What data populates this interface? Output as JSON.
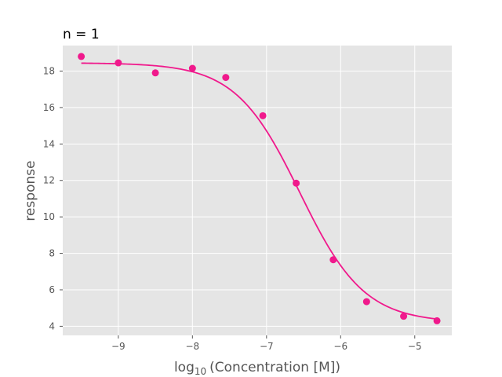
{
  "chart_data": {
    "type": "scatter",
    "title": "n = 1",
    "xlabel_prefix": "log",
    "xlabel_sub": "10",
    "xlabel_suffix": "(Concentration [M])",
    "ylabel": "response",
    "xlim": [
      -9.75,
      -4.5
    ],
    "ylim": [
      3.5,
      19.4
    ],
    "x_ticks": [
      -9,
      -8,
      -7,
      -6,
      -5
    ],
    "x_tick_labels": [
      "−9",
      "−8",
      "−7",
      "−6",
      "−5"
    ],
    "y_ticks": [
      4,
      6,
      8,
      10,
      12,
      14,
      16,
      18
    ],
    "y_tick_labels": [
      "4",
      "6",
      "8",
      "10",
      "12",
      "14",
      "16",
      "18"
    ],
    "grid": true,
    "series": [
      {
        "x": [
          -9.5,
          -9.0,
          -8.5,
          -8.0,
          -7.55,
          -7.05,
          -6.6,
          -6.1,
          -5.65,
          -5.15,
          -4.7
        ],
        "values": [
          18.8,
          18.45,
          17.9,
          18.15,
          17.65,
          15.55,
          11.85,
          7.65,
          5.35,
          4.55,
          4.3
        ]
      }
    ],
    "fit": {
      "type": "4PL",
      "top": 18.45,
      "bottom": 4.2,
      "log_ec50": -6.55,
      "hill": 1.0,
      "x_range": [
        -9.5,
        -4.7
      ]
    },
    "colors": {
      "series": "#f0198c",
      "plot_bg": "#e5e5e5",
      "grid": "#ffffff"
    }
  }
}
